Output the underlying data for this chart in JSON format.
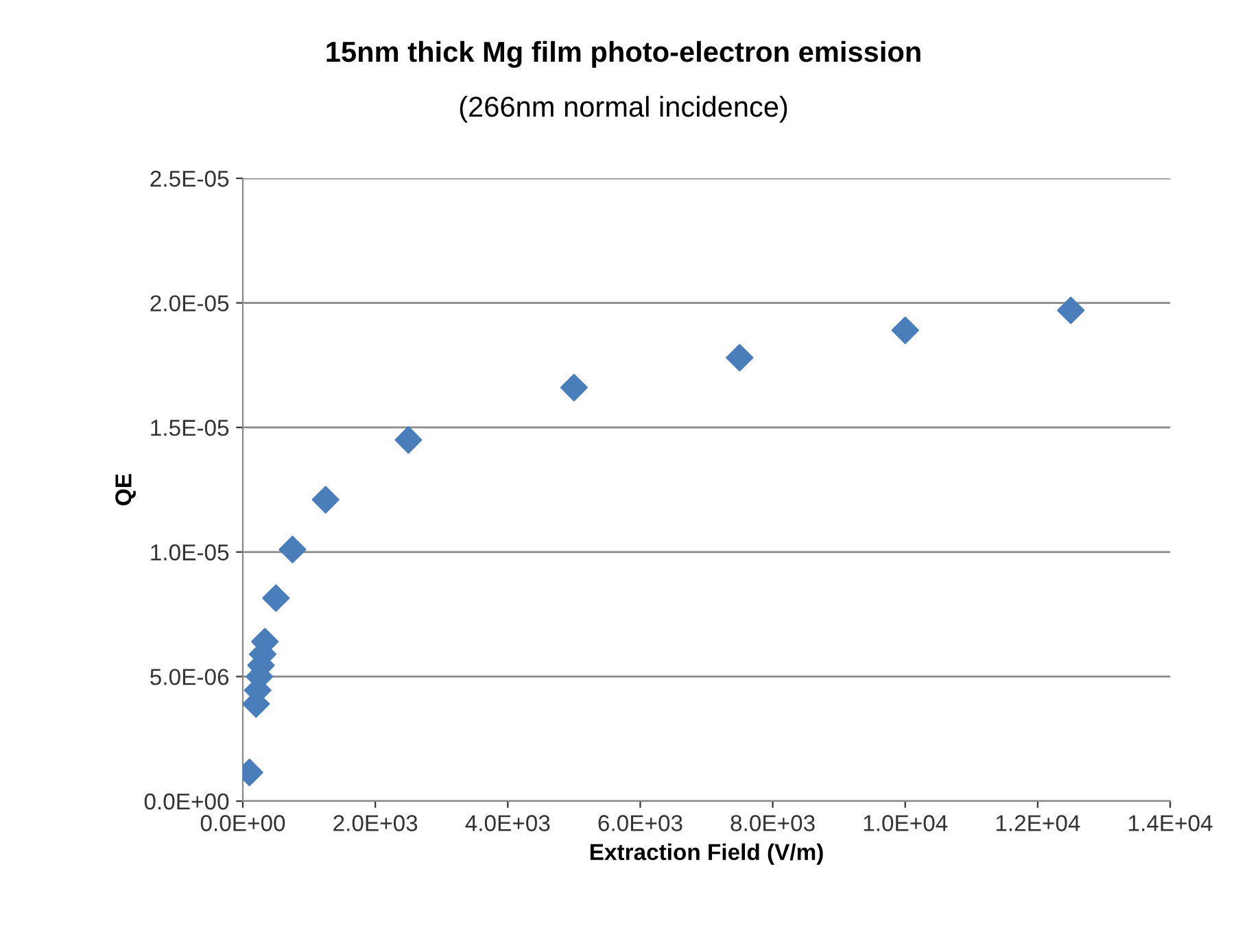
{
  "chart_data": {
    "type": "scatter",
    "title": "15nm thick Mg film photo-electron emission",
    "subtitle": "(266nm normal incidence)",
    "xlabel": "Extraction Field (V/m)",
    "ylabel": "QE",
    "series": [
      {
        "color": "#4a7ebb",
        "x": [
          100,
          200,
          225,
          250,
          275,
          300,
          333,
          500,
          750,
          1250,
          2500,
          5000,
          7500,
          10000,
          12500
        ],
        "values": [
          1.15e-06,
          3.9e-06,
          4.45e-06,
          5e-06,
          5.45e-06,
          5.9e-06,
          6.4e-06,
          8.15e-06,
          1.01e-05,
          1.21e-05,
          1.45e-05,
          1.66e-05,
          1.78e-05,
          1.89e-05,
          1.97e-05
        ]
      }
    ],
    "xlim": [
      0,
      14000
    ],
    "ylim": [
      0,
      2.5e-05
    ],
    "xticks": [
      {
        "value": 0,
        "label": "0.0E+00"
      },
      {
        "value": 2000,
        "label": "2.0E+03"
      },
      {
        "value": 4000,
        "label": "4.0E+03"
      },
      {
        "value": 6000,
        "label": "6.0E+03"
      },
      {
        "value": 8000,
        "label": "8.0E+03"
      },
      {
        "value": 10000,
        "label": "1.0E+04"
      },
      {
        "value": 12000,
        "label": "1.2E+04"
      },
      {
        "value": 14000,
        "label": "1.4E+04"
      }
    ],
    "yticks": [
      {
        "value": 0,
        "label": "0.0E+00"
      },
      {
        "value": 5e-06,
        "label": "5.0E-06"
      },
      {
        "value": 1e-05,
        "label": "1.0E-05"
      },
      {
        "value": 1.5e-05,
        "label": "1.5E-05"
      },
      {
        "value": 2e-05,
        "label": "2.0E-05"
      },
      {
        "value": 2.5e-05,
        "label": "2.5E-05"
      }
    ],
    "grid": "y",
    "marker": "diamond",
    "legend": false
  }
}
